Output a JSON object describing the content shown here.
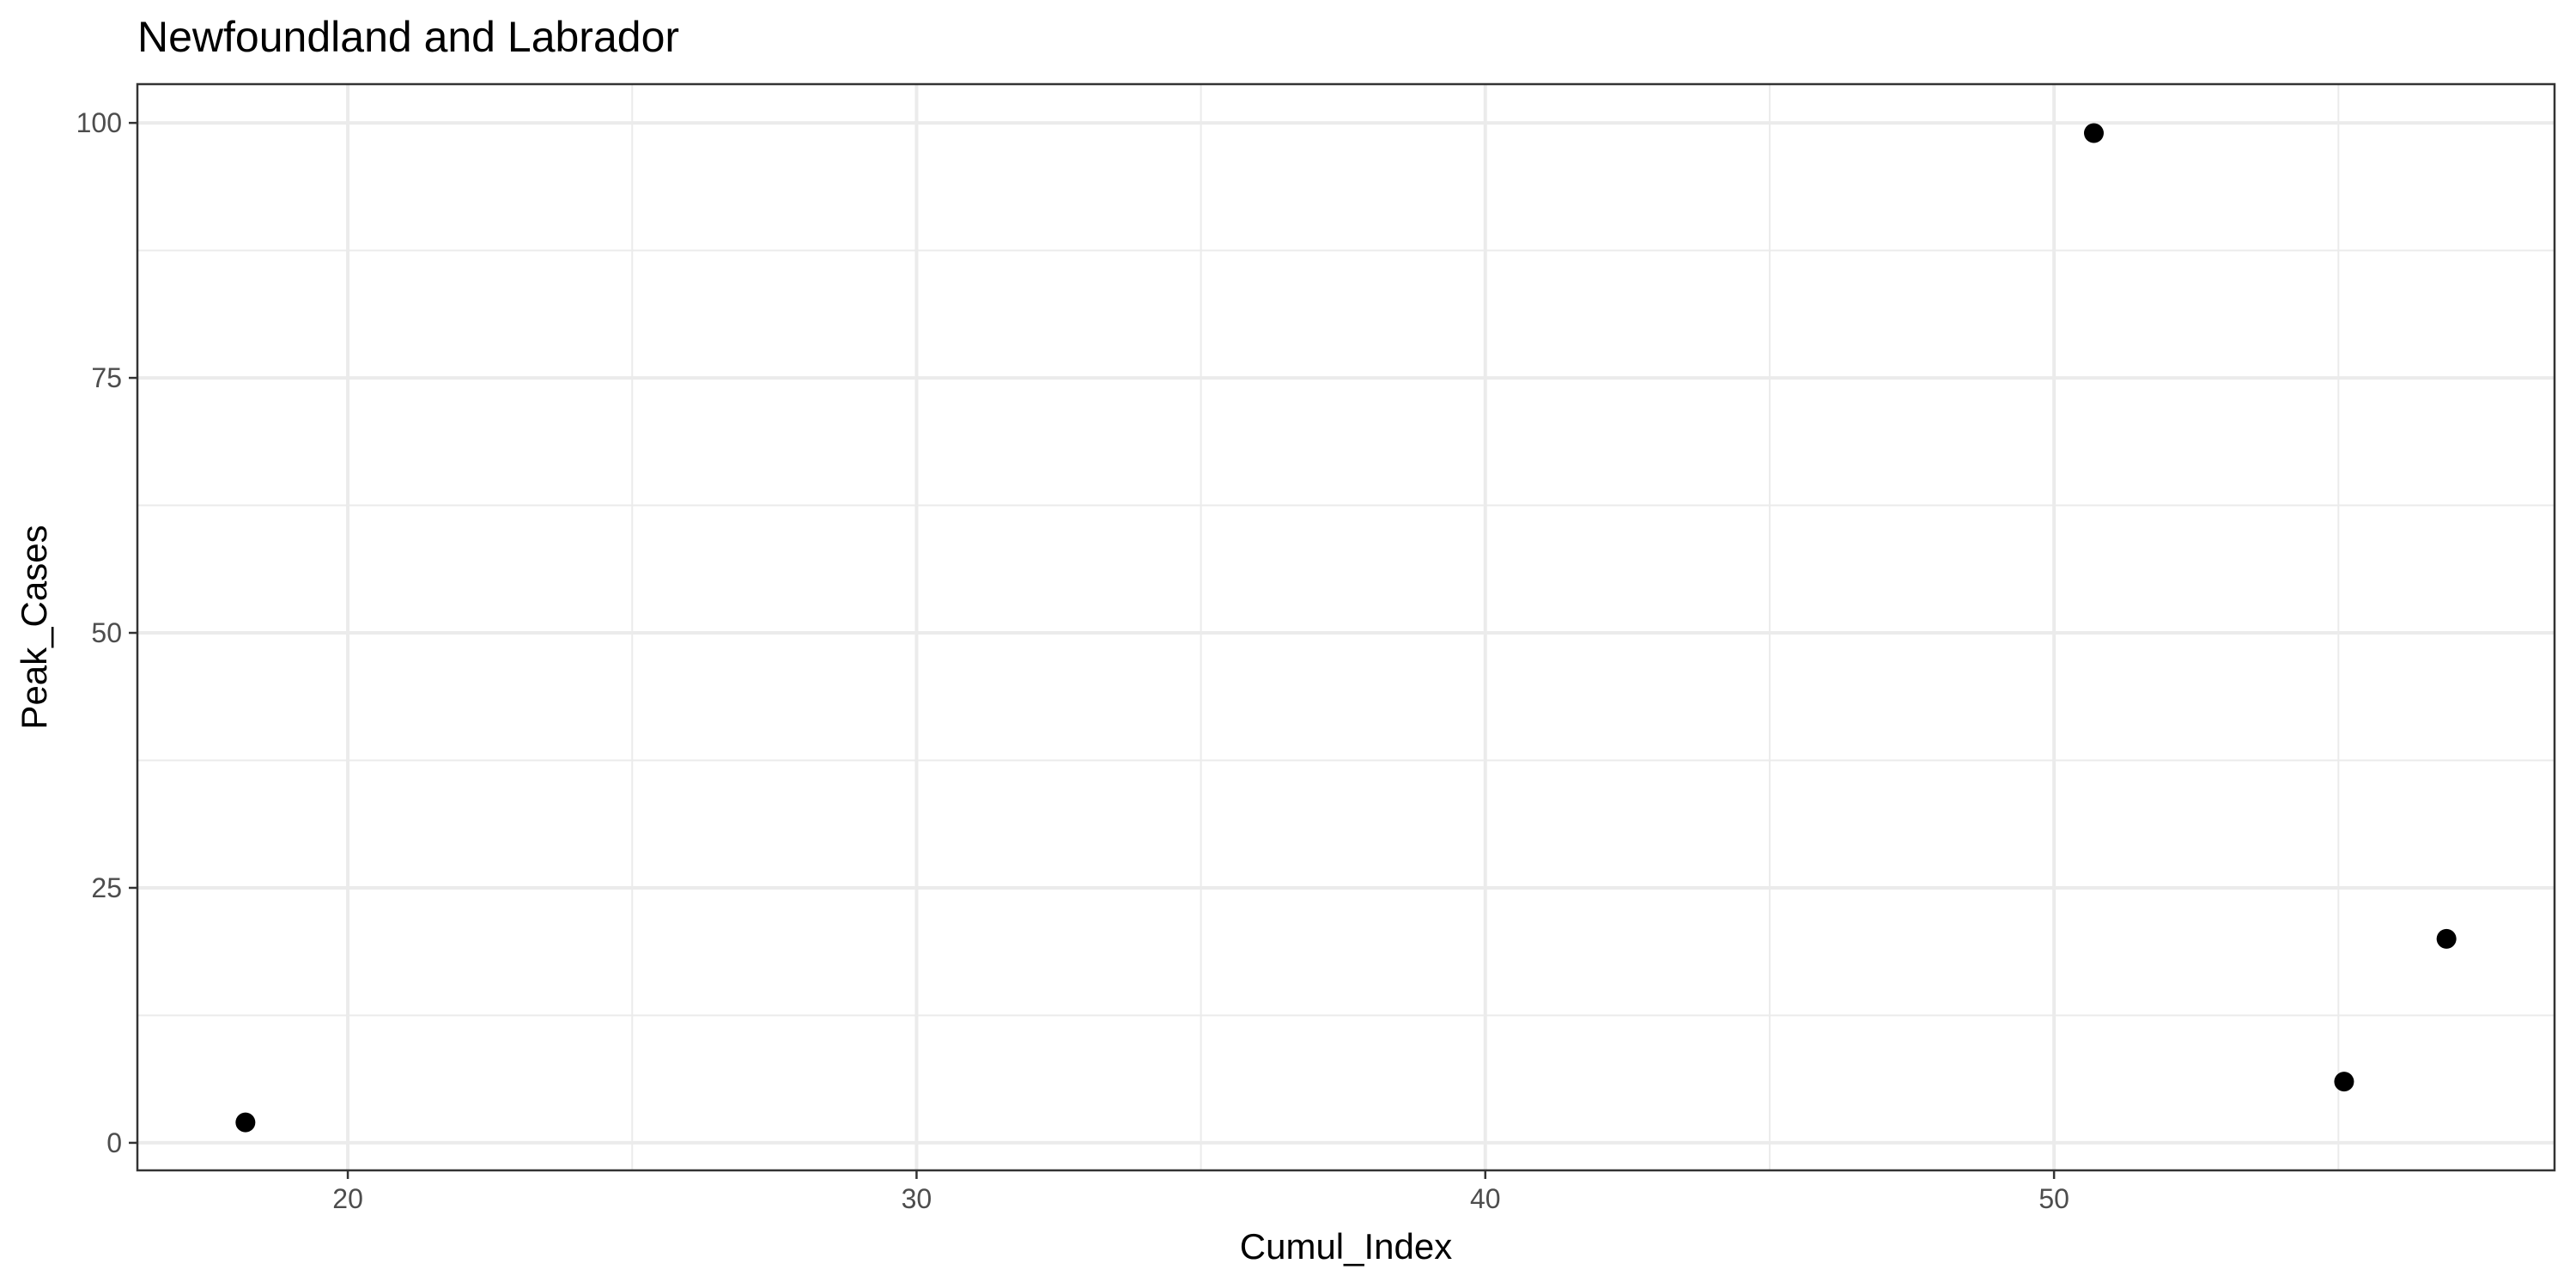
{
  "chart_data": {
    "type": "scatter",
    "title": "Newfoundland and Labrador",
    "xlabel": "Cumul_Index",
    "ylabel": "Peak_Cases",
    "xlim": [
      16.3,
      58.8
    ],
    "ylim": [
      -2.7,
      103.8
    ],
    "x_ticks": [
      20,
      30,
      40,
      50
    ],
    "y_ticks": [
      0,
      25,
      50,
      75,
      100
    ],
    "x_minor": [
      25,
      35,
      45,
      55
    ],
    "y_minor": [
      12.5,
      37.5,
      62.5,
      87.5
    ],
    "grid": true,
    "point_color": "#000000",
    "points": [
      {
        "x": 18.2,
        "y": 2
      },
      {
        "x": 50.7,
        "y": 99
      },
      {
        "x": 55.1,
        "y": 6
      },
      {
        "x": 56.9,
        "y": 20
      }
    ]
  }
}
